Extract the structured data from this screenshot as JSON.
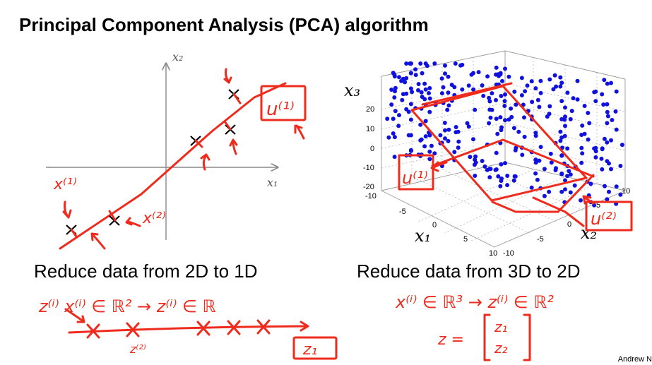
{
  "slide": {
    "title": "Principal Component Analysis (PCA) algorithm",
    "credit": "Andrew N"
  },
  "left_panel": {
    "x_axis_label": "x₁",
    "y_axis_label": "x₂",
    "caption": "Reduce data from 2D to 1D",
    "annotations": {
      "u1": "u⁽¹⁾",
      "x1": "x⁽¹⁾",
      "x2": "x⁽²⁾",
      "line1": "z⁽ⁱ⁾  x⁽ⁱ⁾ ∈ ℝ²  →  z⁽ⁱ⁾ ∈ ℝ",
      "z1_box": "z₁",
      "z2_label": "z⁽²⁾"
    }
  },
  "right_panel": {
    "x1_label": "x₁",
    "x2_label": "x₂",
    "x3_label": "x₃",
    "z_ticks": [
      "20",
      "10",
      "0",
      "-10",
      "-20"
    ],
    "x1_ticks": [
      "-10",
      "-5",
      "0",
      "5",
      "10"
    ],
    "x2_ticks": [
      "10",
      "5",
      "0",
      "-5",
      "-10"
    ],
    "caption": "Reduce data from 3D to 2D",
    "annotations": {
      "u1": "u⁽¹⁾",
      "u2": "u⁽²⁾",
      "line1": "x⁽ⁱ⁾ ∈ ℝ³  →  z⁽ⁱ⁾ ∈ ℝ²",
      "z_eq": "z =",
      "z_vec": [
        "z₁",
        "z₂"
      ]
    },
    "point_color": "#1111dd"
  },
  "ink_color": "#ee2b1c"
}
